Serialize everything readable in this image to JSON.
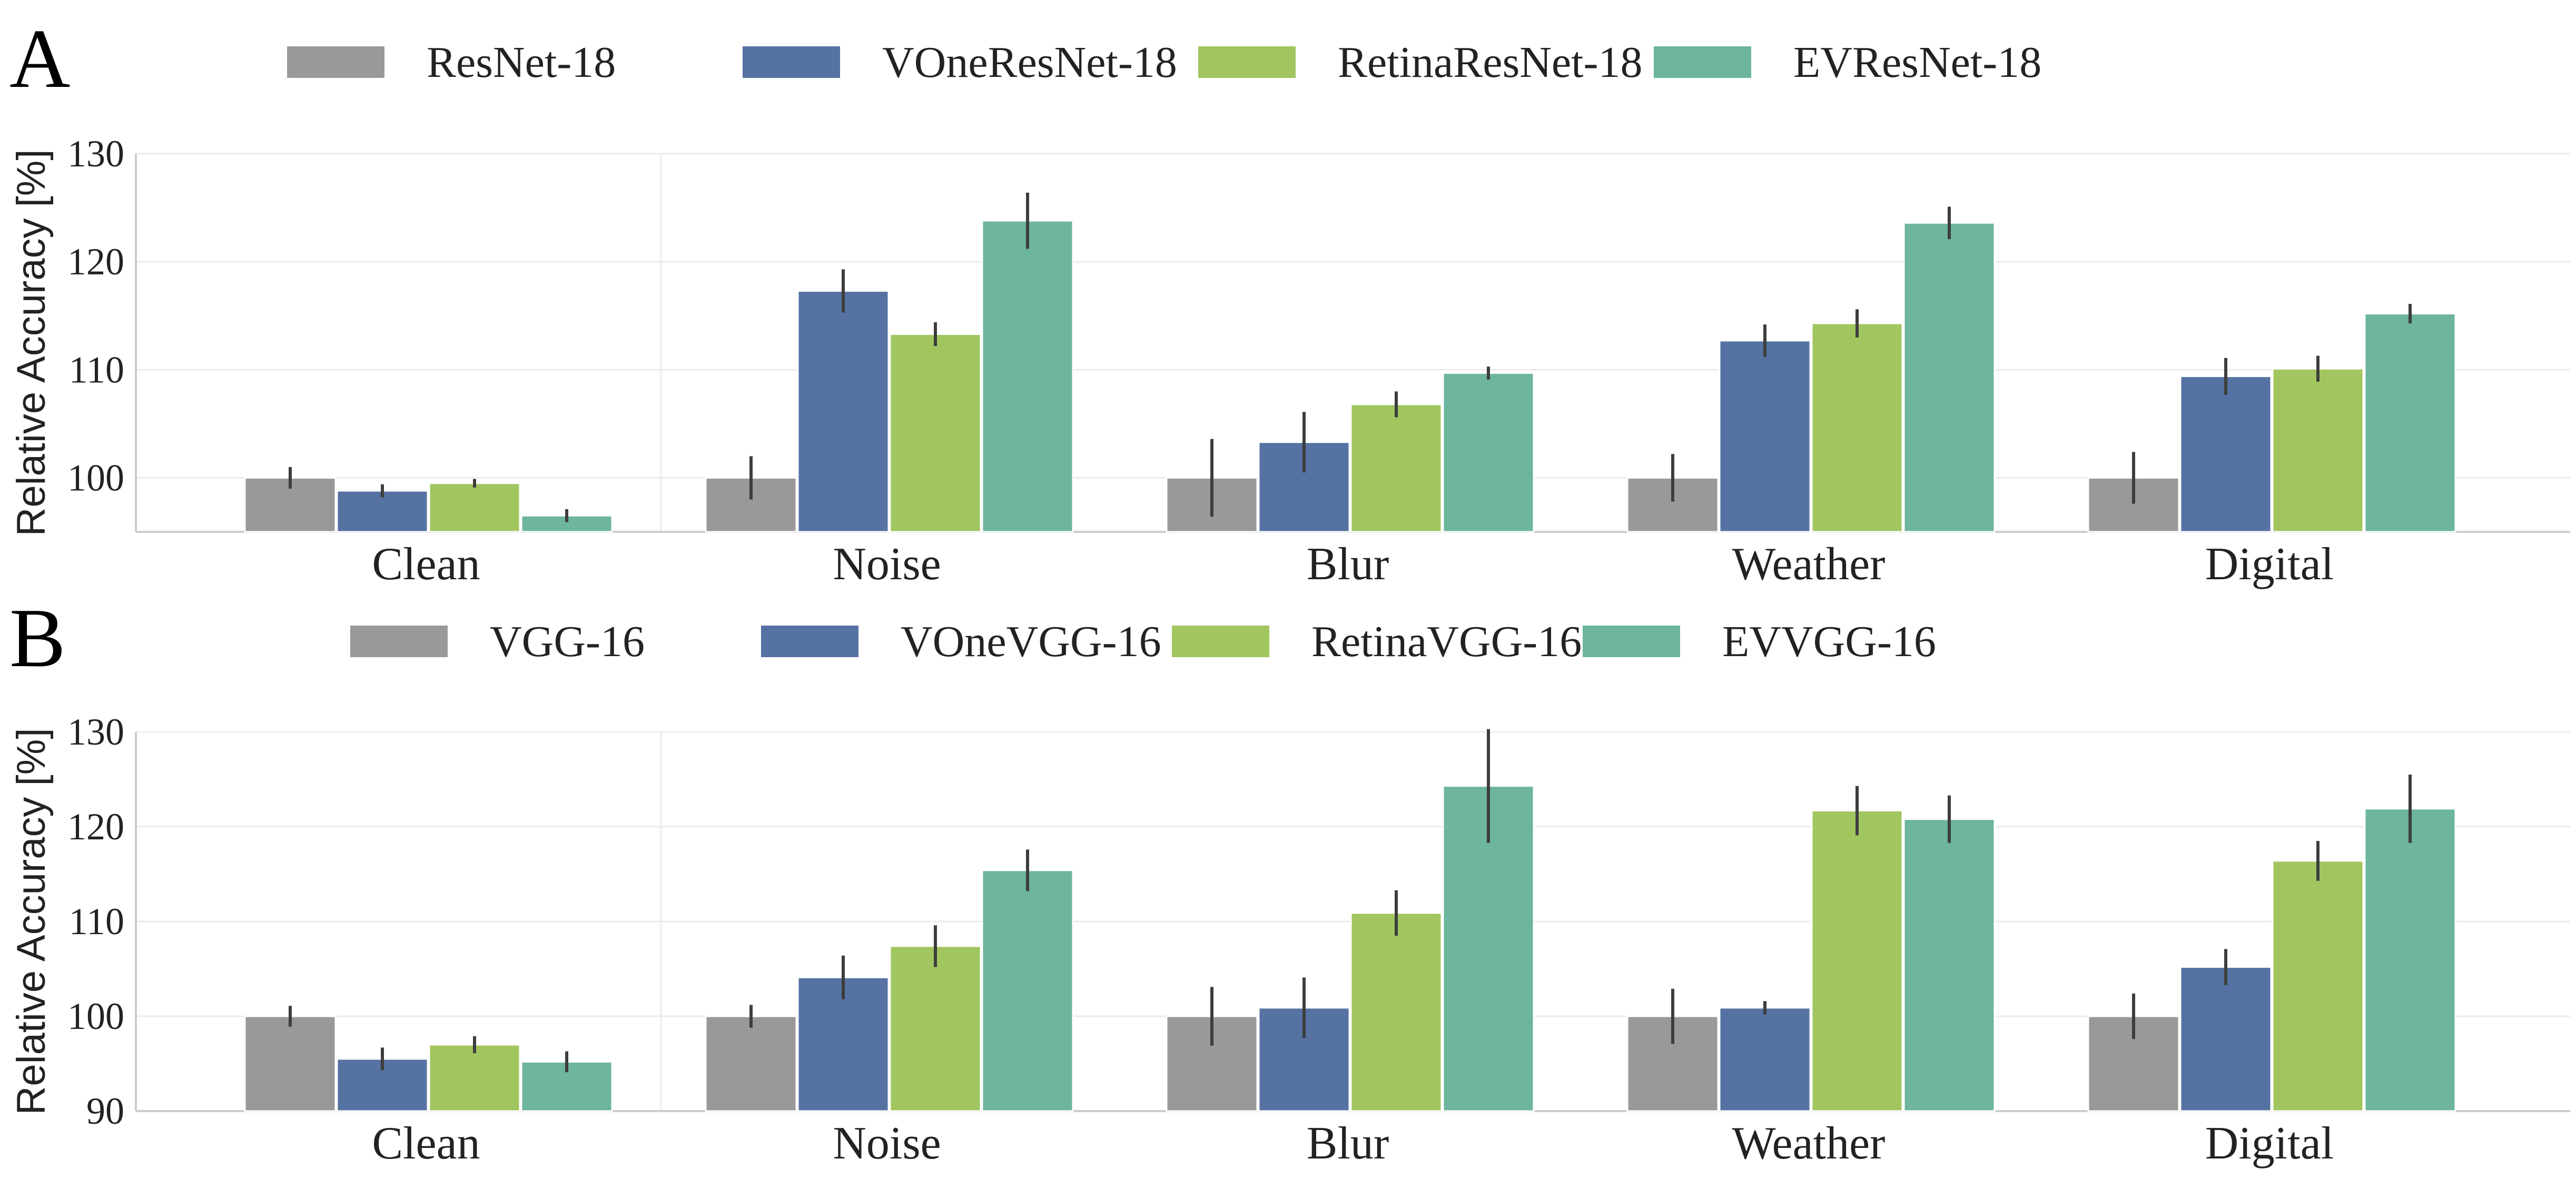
{
  "chart_data": [
    {
      "panel": "A",
      "type": "bar",
      "ylabel": "Relative Accuracy [%]",
      "ylim": [
        95,
        130
      ],
      "yticks": [
        100,
        110,
        120,
        130
      ],
      "grid": true,
      "legend_position": "top",
      "categories": [
        "Clean",
        "Noise",
        "Blur",
        "Weather",
        "Digital"
      ],
      "series": [
        {
          "name": "ResNet-18",
          "color": "#999999",
          "values": [
            100,
            100,
            100,
            100,
            100
          ],
          "errors": [
            1.0,
            2.0,
            3.6,
            2.2,
            2.4
          ]
        },
        {
          "name": "VOneResNet-18",
          "color": "#5572a2",
          "values": [
            98.8,
            117.3,
            103.3,
            112.7,
            109.4
          ],
          "errors": [
            0.6,
            2.0,
            2.8,
            1.5,
            1.7
          ]
        },
        {
          "name": "RetinaResNet-18",
          "color": "#a1c660",
          "values": [
            99.5,
            113.3,
            106.8,
            114.3,
            110.1
          ],
          "errors": [
            0.4,
            1.1,
            1.2,
            1.3,
            1.2
          ]
        },
        {
          "name": "EVResNet-18",
          "color": "#6db59e",
          "values": [
            96.5,
            123.8,
            109.7,
            123.6,
            115.2
          ],
          "errors": [
            0.6,
            2.6,
            0.6,
            1.5,
            0.9
          ]
        }
      ]
    },
    {
      "panel": "B",
      "type": "bar",
      "ylabel": "Relative Accuracy [%]",
      "ylim": [
        90,
        130
      ],
      "yticks": [
        90,
        100,
        110,
        120,
        130
      ],
      "grid": true,
      "legend_position": "top",
      "categories": [
        "Clean",
        "Noise",
        "Blur",
        "Weather",
        "Digital"
      ],
      "series": [
        {
          "name": "VGG-16",
          "color": "#999999",
          "values": [
            100,
            100,
            100,
            100,
            100
          ],
          "errors": [
            1.1,
            1.2,
            3.1,
            2.9,
            2.4
          ]
        },
        {
          "name": "VOneVGG-16",
          "color": "#5572a2",
          "values": [
            95.5,
            104.1,
            100.9,
            100.9,
            105.2
          ],
          "errors": [
            1.2,
            2.3,
            3.2,
            0.7,
            1.9
          ]
        },
        {
          "name": "RetinaVGG-16",
          "color": "#a1c660",
          "values": [
            97.0,
            107.4,
            110.9,
            121.7,
            116.4
          ],
          "errors": [
            0.9,
            2.2,
            2.4,
            2.6,
            2.1
          ]
        },
        {
          "name": "EVVGG-16",
          "color": "#6db59e",
          "values": [
            95.2,
            115.4,
            124.3,
            120.8,
            121.9
          ],
          "errors": [
            1.1,
            2.2,
            6.0,
            2.5,
            3.6
          ]
        }
      ]
    }
  ]
}
